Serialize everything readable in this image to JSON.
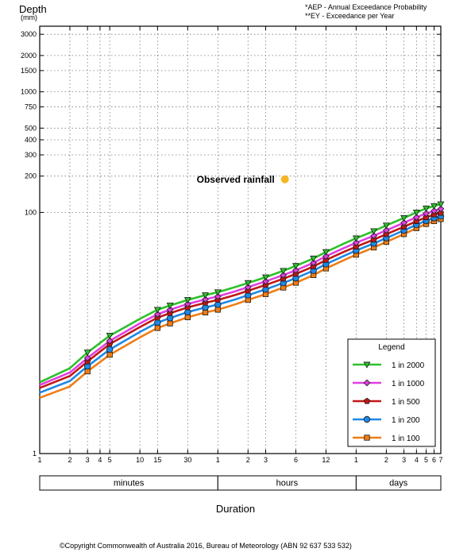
{
  "chart_data": {
    "type": "line",
    "ylabel": "Depth",
    "yunit": "(mm)",
    "xlabel": "Duration",
    "y_scale": "log",
    "ylim": [
      1,
      3500
    ],
    "grid": true,
    "legend_title": "Legend",
    "legend_position": "bottom-right",
    "notes": [
      "*AEP - Annual Exceedance Probability",
      "**EY - Exceedance per Year"
    ],
    "copyright": "©Copyright Commonwealth of Australia 2016, Bureau of Meteorology (ABN 92 637 533 532)",
    "yticks": [
      1,
      100,
      200,
      300,
      400,
      500,
      750,
      1000,
      1500,
      2000,
      3000
    ],
    "xticks": [
      {
        "label": "1",
        "minutes": 1
      },
      {
        "label": "2",
        "minutes": 2
      },
      {
        "label": "3",
        "minutes": 3
      },
      {
        "label": "4",
        "minutes": 4
      },
      {
        "label": "5",
        "minutes": 5
      },
      {
        "label": "10",
        "minutes": 10
      },
      {
        "label": "15",
        "minutes": 15
      },
      {
        "label": "30",
        "minutes": 30
      },
      {
        "label": "1",
        "minutes": 60
      },
      {
        "label": "2",
        "minutes": 120
      },
      {
        "label": "3",
        "minutes": 180
      },
      {
        "label": "6",
        "minutes": 360
      },
      {
        "label": "12",
        "minutes": 720
      },
      {
        "label": "1",
        "minutes": 1440
      },
      {
        "label": "2",
        "minutes": 2880
      },
      {
        "label": "3",
        "minutes": 4320
      },
      {
        "label": "4",
        "minutes": 5760
      },
      {
        "label": "5",
        "minutes": 7200
      },
      {
        "label": "6",
        "minutes": 8640
      },
      {
        "label": "7",
        "minutes": 10080
      }
    ],
    "duration_groups": [
      {
        "label": "minutes",
        "from": 1,
        "to": 60
      },
      {
        "label": "hours",
        "from": 60,
        "to": 1440
      },
      {
        "label": "days",
        "from": 1440,
        "to": 10080
      }
    ],
    "x_minutes": [
      1,
      2,
      3,
      5,
      10,
      15,
      20,
      30,
      45,
      60,
      90,
      120,
      180,
      270,
      360,
      540,
      720,
      1080,
      1440,
      2160,
      2880,
      4320,
      5760,
      7200,
      8640,
      10080
    ],
    "marker_x_minutes": [
      3,
      5,
      15,
      20,
      30,
      45,
      60,
      120,
      180,
      270,
      360,
      540,
      720,
      1440,
      2160,
      2880,
      4320,
      5760,
      7200,
      8640,
      10080
    ],
    "series": [
      {
        "name": "1 in 2000",
        "color": "#2ec02b",
        "marker": "triangle-down",
        "values": [
          3.9,
          5.1,
          6.9,
          9.5,
          13.1,
          15.6,
          16.9,
          18.8,
          20.6,
          21.8,
          24.1,
          26.0,
          29.0,
          32.8,
          36.0,
          41.5,
          47.0,
          55.0,
          61.0,
          70.0,
          78.0,
          90.0,
          100.0,
          108.0,
          113.0,
          117.0
        ]
      },
      {
        "name": "1 in 1000",
        "color": "#e040e0",
        "marker": "diamond",
        "values": [
          3.7,
          4.7,
          6.2,
          8.6,
          12.0,
          14.3,
          15.6,
          17.4,
          19.0,
          20.1,
          22.2,
          24.0,
          26.8,
          30.2,
          33.1,
          38.2,
          43.3,
          50.5,
          56.0,
          64.0,
          71.0,
          82.0,
          91.0,
          98.0,
          103.0,
          107.0
        ]
      },
      {
        "name": "1 in 500",
        "color": "#c01818",
        "marker": "pentagon",
        "values": [
          3.5,
          4.4,
          5.8,
          8.1,
          11.2,
          13.4,
          14.6,
          16.3,
          17.8,
          18.8,
          20.7,
          22.4,
          25.0,
          28.2,
          30.9,
          35.6,
          40.3,
          47.0,
          52.0,
          59.5,
          66.0,
          76.0,
          84.5,
          91.0,
          96.0,
          99.0
        ]
      },
      {
        "name": "1 in 200",
        "color": "#1e88e5",
        "marker": "circle",
        "values": [
          3.2,
          4.0,
          5.3,
          7.3,
          10.2,
          12.2,
          13.3,
          14.9,
          16.3,
          17.2,
          19.0,
          20.6,
          23.0,
          26.0,
          28.5,
          32.9,
          37.3,
          43.5,
          48.3,
          55.3,
          61.3,
          70.9,
          79.0,
          85.3,
          89.8,
          93.0
        ]
      },
      {
        "name": "1 in 100",
        "color": "#ef7d16",
        "marker": "square",
        "values": [
          2.9,
          3.6,
          4.8,
          6.6,
          9.2,
          11.0,
          12.0,
          13.5,
          14.8,
          15.6,
          17.3,
          18.8,
          21.0,
          23.8,
          26.1,
          30.2,
          34.3,
          40.1,
          44.6,
          51.2,
          56.9,
          66.1,
          74.0,
          80.2,
          84.6,
          88.0
        ]
      }
    ],
    "observed": {
      "label": "Observed rainfall",
      "x_minutes": 280,
      "y": 188,
      "color": "#f6b623"
    }
  }
}
